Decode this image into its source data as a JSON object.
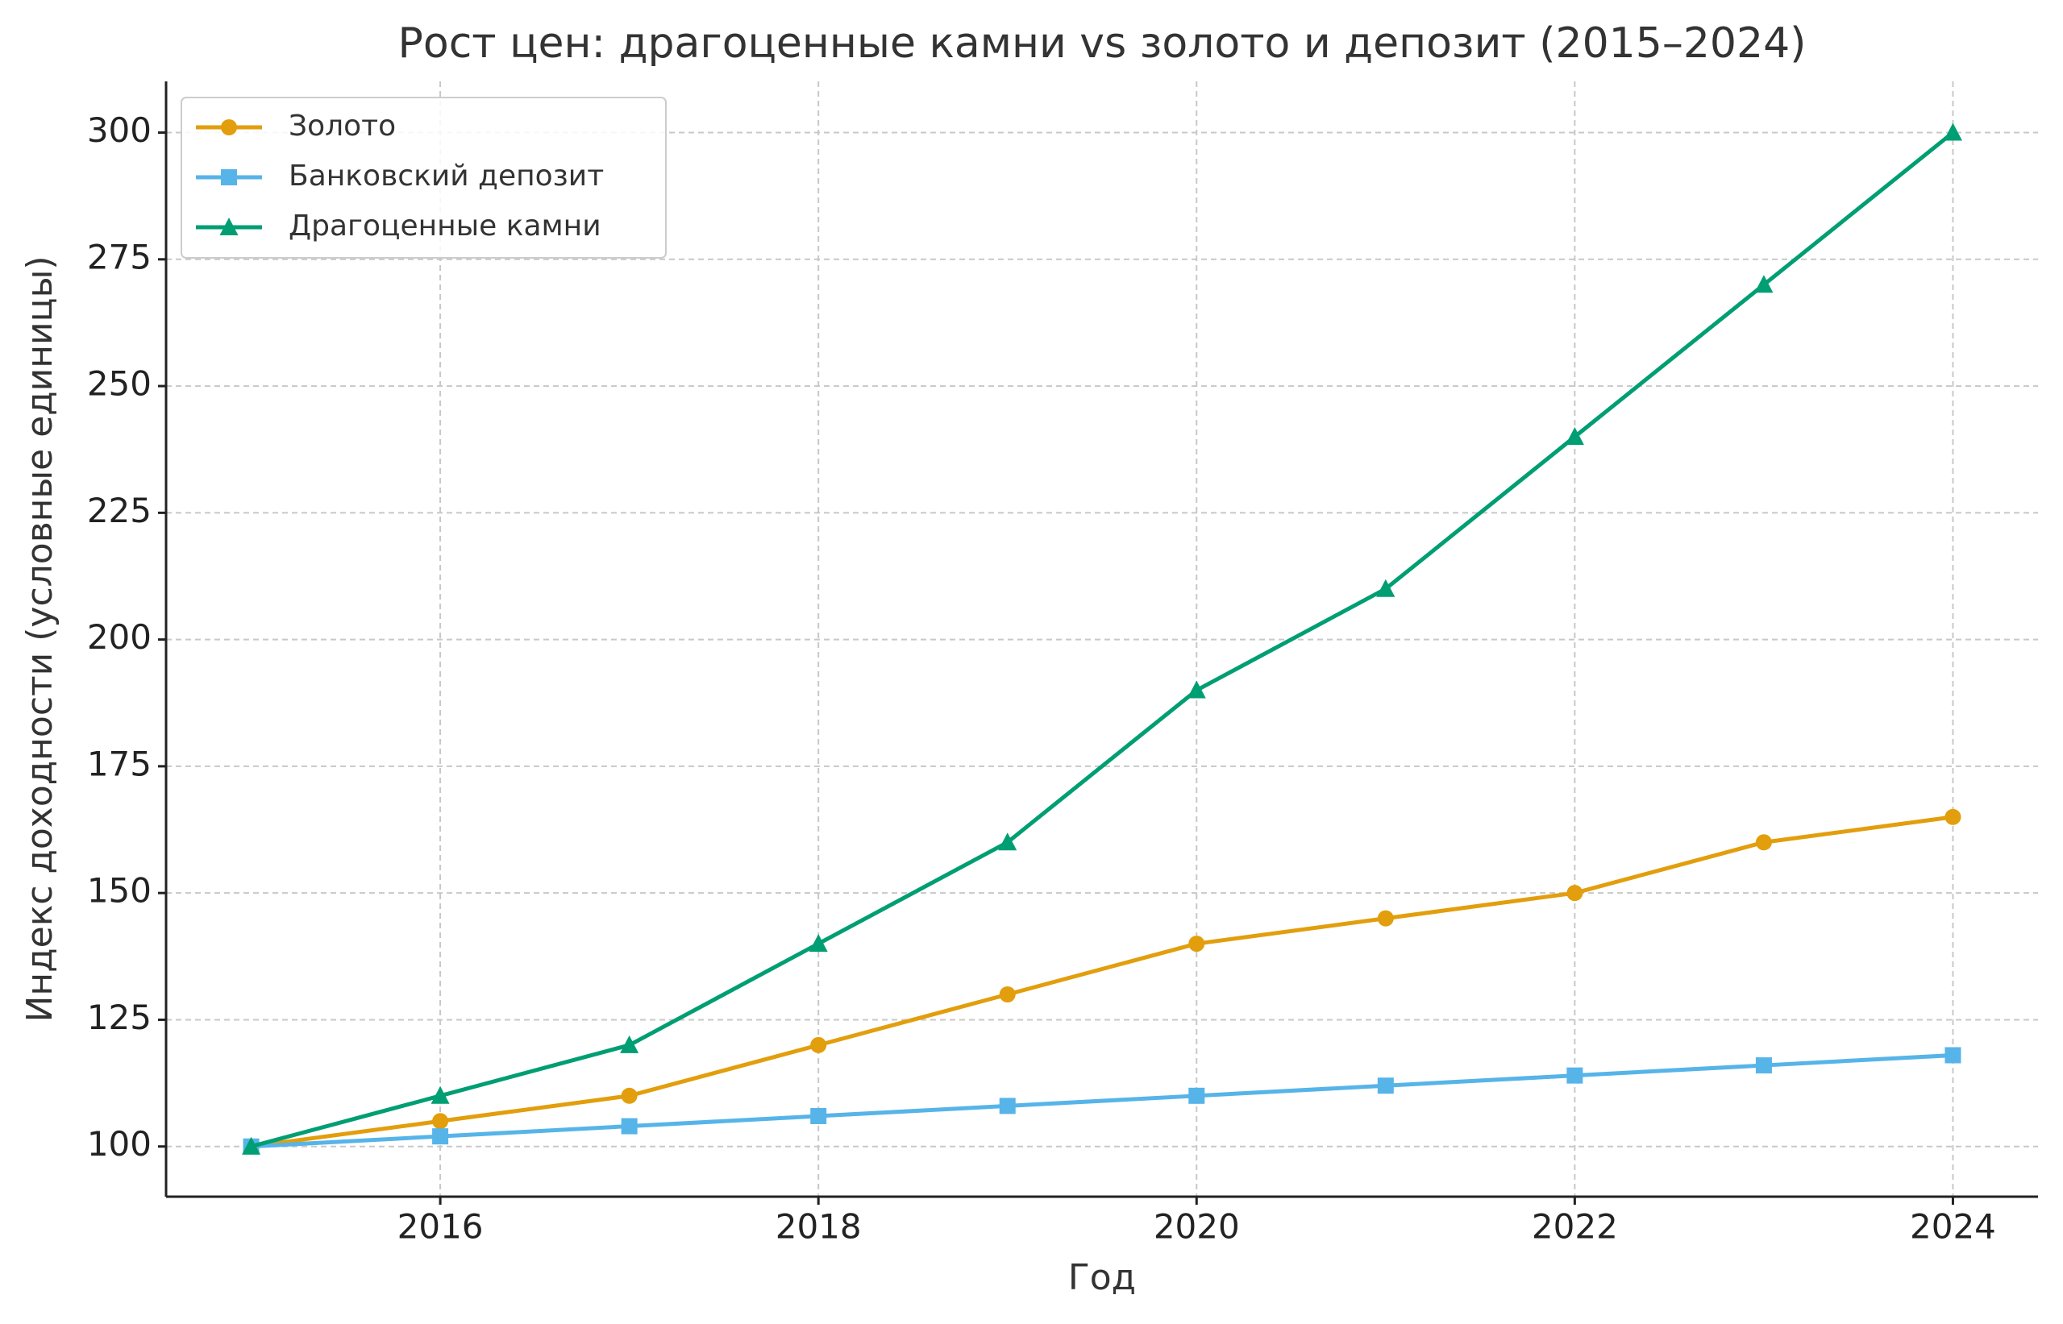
{
  "chart_data": {
    "type": "line",
    "title": "Рост цен: драгоценные камни vs золото и депозит (2015–2024)",
    "xlabel": "Год",
    "ylabel": "Индекс доходности (условные единицы)",
    "x": [
      2015,
      2016,
      2017,
      2018,
      2019,
      2020,
      2021,
      2022,
      2023,
      2024
    ],
    "series": [
      {
        "name": "Золото",
        "color": "#e29e0c",
        "marker": "circle",
        "values": [
          100,
          105,
          110,
          120,
          130,
          140,
          145,
          150,
          160,
          165
        ]
      },
      {
        "name": "Банковский депозит",
        "color": "#56b4e9",
        "marker": "square",
        "values": [
          100,
          102,
          104,
          106,
          108,
          110,
          112,
          114,
          116,
          118
        ]
      },
      {
        "name": "Драгоценные камни",
        "color": "#009e73",
        "marker": "triangle",
        "values": [
          100,
          110,
          120,
          140,
          160,
          190,
          210,
          240,
          270,
          300
        ]
      }
    ],
    "xlim": [
      2014.55,
      2024.45
    ],
    "ylim": [
      90.1,
      310.1
    ],
    "xticks": [
      2016,
      2018,
      2020,
      2022,
      2024
    ],
    "yticks": [
      100,
      125,
      150,
      175,
      200,
      225,
      250,
      275,
      300
    ],
    "grid": true,
    "legend": "upper left"
  }
}
